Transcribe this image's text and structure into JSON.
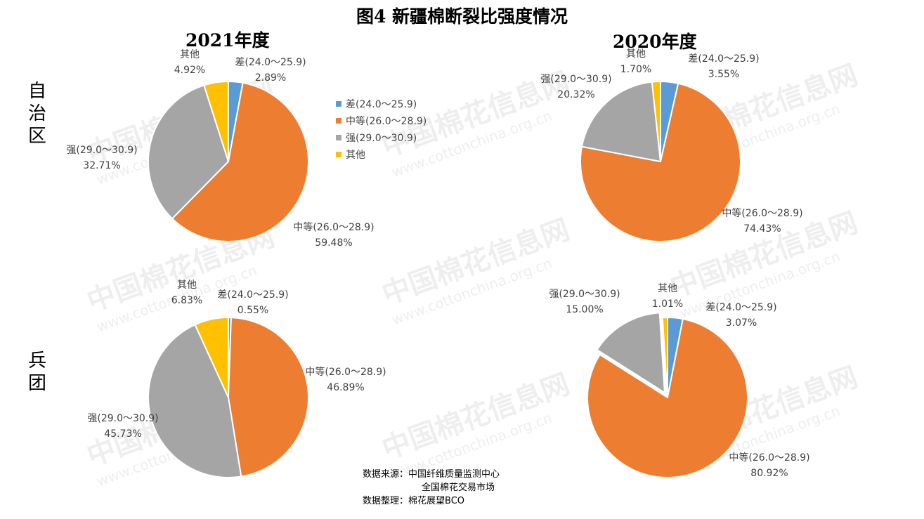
{
  "title": "图4  新疆棉断裂比强度情况",
  "row_labels": {
    "region": "自治区",
    "corps": "兵团"
  },
  "column_titles": {
    "y2021": "2021年度",
    "y2020": "2020年度"
  },
  "watermark": {
    "text": "中国棉花信息网",
    "sub": "www.cottonchina.org.cn"
  },
  "legend": [
    {
      "label": "差(24.0～25.9)",
      "color": "#5B9BD5"
    },
    {
      "label": "中等(26.0～28.9)",
      "color": "#ED7D31"
    },
    {
      "label": "强(29.0～30.9)",
      "color": "#A5A5A5"
    },
    {
      "label": "其他",
      "color": "#FFC000"
    }
  ],
  "source": {
    "line1": "数据来源：中国纤维质量监测中心",
    "line2": "全国棉花交易市场",
    "line3": "数据整理：棉花展望BCO"
  },
  "chart_data": [
    {
      "type": "pie",
      "title": "2021年度",
      "group": "自治区",
      "slices": [
        {
          "label": "差(24.0～25.9)",
          "value": 2.89,
          "pct": "2.89%",
          "color": "#5B9BD5"
        },
        {
          "label": "中等(26.0～28.9)",
          "value": 59.48,
          "pct": "59.48%",
          "color": "#ED7D31"
        },
        {
          "label": "强(29.0～30.9)",
          "value": 32.71,
          "pct": "32.71%",
          "color": "#A5A5A5"
        },
        {
          "label": "其他",
          "value": 4.92,
          "pct": "4.92%",
          "color": "#FFC000"
        }
      ]
    },
    {
      "type": "pie",
      "title": "2020年度",
      "group": "自治区",
      "slices": [
        {
          "label": "差(24.0～25.9)",
          "value": 3.55,
          "pct": "3.55%",
          "color": "#5B9BD5"
        },
        {
          "label": "中等(26.0～28.9)",
          "value": 74.43,
          "pct": "74.43%",
          "color": "#ED7D31"
        },
        {
          "label": "强(29.0～30.9)",
          "value": 20.32,
          "pct": "20.32%",
          "color": "#A5A5A5"
        },
        {
          "label": "其他",
          "value": 1.7,
          "pct": "1.70%",
          "color": "#FFC000"
        }
      ]
    },
    {
      "type": "pie",
      "title": "2021年度",
      "group": "兵团",
      "slices": [
        {
          "label": "差(24.0～25.9)",
          "value": 0.55,
          "pct": "0.55%",
          "color": "#5B9BD5"
        },
        {
          "label": "中等(26.0～28.9)",
          "value": 46.89,
          "pct": "46.89%",
          "color": "#ED7D31"
        },
        {
          "label": "强(29.0～30.9)",
          "value": 45.73,
          "pct": "45.73%",
          "color": "#A5A5A5"
        },
        {
          "label": "其他",
          "value": 6.83,
          "pct": "6.83%",
          "color": "#FFC000"
        }
      ]
    },
    {
      "type": "pie",
      "title": "2020年度",
      "group": "兵团",
      "slices": [
        {
          "label": "差(24.0～25.9)",
          "value": 3.07,
          "pct": "3.07%",
          "color": "#5B9BD5"
        },
        {
          "label": "中等(26.0～28.9)",
          "value": 80.92,
          "pct": "80.92%",
          "color": "#ED7D31"
        },
        {
          "label": "强(29.0～30.9)",
          "value": 15.0,
          "pct": "15.00%",
          "color": "#A5A5A5"
        },
        {
          "label": "其他",
          "value": 1.01,
          "pct": "1.01%",
          "color": "#FFC000"
        }
      ]
    }
  ]
}
